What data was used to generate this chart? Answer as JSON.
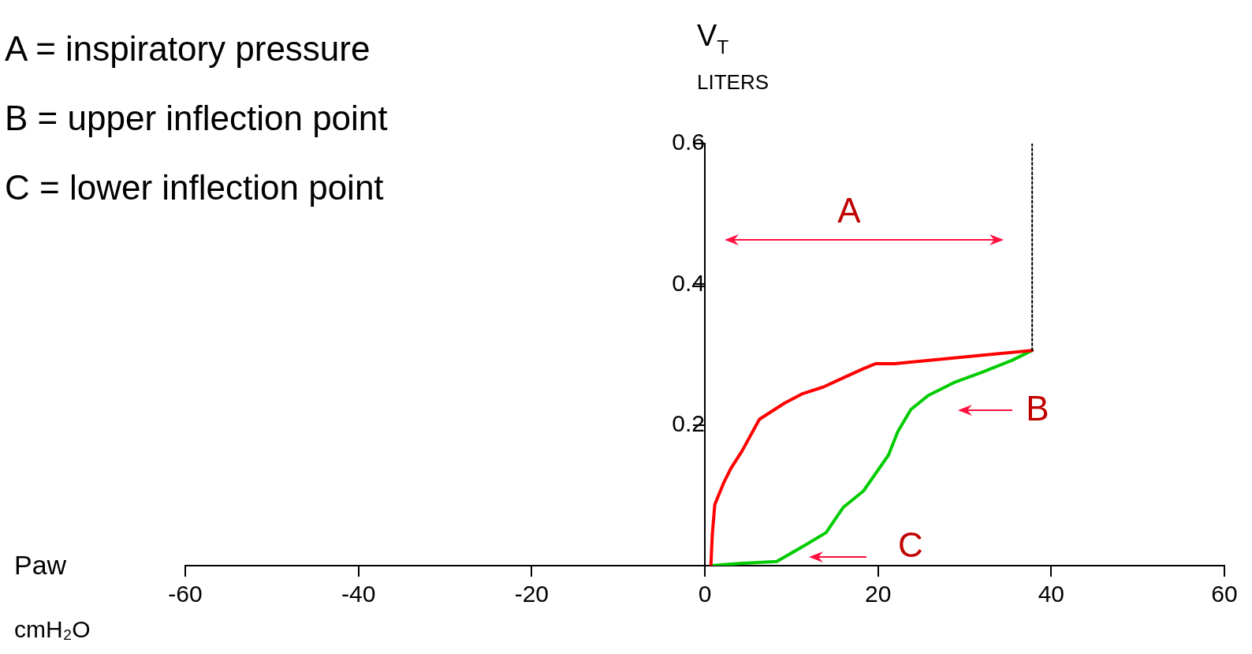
{
  "chart_data": {
    "type": "line",
    "xlabel": "Paw\ncmH₂O",
    "ylabel": "V$_{T}$\nLITERS",
    "xlim": [
      -60,
      60
    ],
    "xticks": [
      -60,
      -40,
      -20,
      0,
      20,
      40,
      60
    ],
    "ylim": [
      0,
      0.6
    ],
    "yticks": [
      0.2,
      0.4,
      0.6
    ],
    "grid": false,
    "legend": false,
    "marker": "none",
    "series": [
      {
        "color": "#ff0000",
        "x": [
          0.7,
          0.86,
          1.15,
          2.15,
          3.0,
          4.3,
          6.3,
          9.2,
          11.2,
          13.7,
          16.0,
          18.3,
          19.7,
          21.9,
          37.8
        ],
        "values": [
          0,
          0.044,
          0.087,
          0.117,
          0.138,
          0.163,
          0.208,
          0.231,
          0.244,
          0.254,
          0.267,
          0.28,
          0.287,
          0.287,
          0.306
        ]
      },
      {
        "color": "#00cc00",
        "x": [
          0.7,
          4.0,
          8.3,
          11.7,
          14.0,
          16.0,
          18.3,
          19.5,
          21.2,
          22.3,
          23.8,
          25.8,
          28.9,
          32.0,
          35.5,
          37.8
        ],
        "values": [
          0,
          0.003,
          0.006,
          0.03,
          0.047,
          0.083,
          0.106,
          0.127,
          0.157,
          0.191,
          0.222,
          0.242,
          0.261,
          0.275,
          0.292,
          0.306
        ]
      },
      {
        "color": "#000000",
        "line_style": "dotted",
        "x": [
          37.8,
          37.8
        ],
        "values": [
          0.306,
          0.6
        ]
      }
    ],
    "annotations": [
      "A = inspiratory pressure",
      "B = upper inflection point",
      "C = lower inflection point",
      "A",
      "B",
      "C"
    ]
  }
}
